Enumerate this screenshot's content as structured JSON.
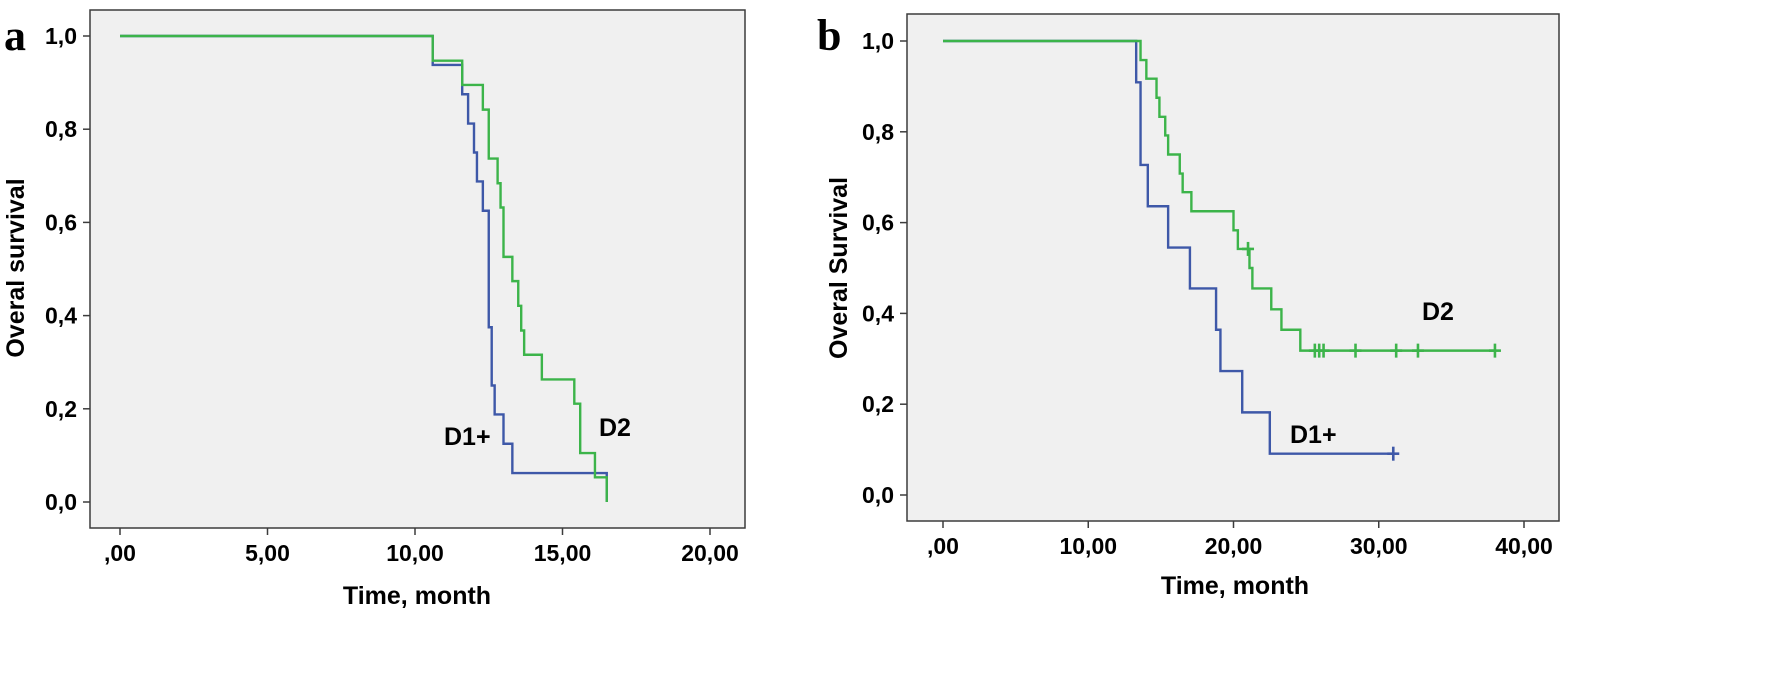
{
  "chart_data": [
    {
      "type": "line",
      "panel": "a",
      "title": "",
      "xlabel": "Time, month",
      "ylabel": "Overal survival",
      "xlim": [
        0,
        20
      ],
      "ylim": [
        0,
        1
      ],
      "xticks": [
        0,
        5,
        10,
        15,
        20
      ],
      "xtick_labels": [
        ",00",
        "5,00",
        "10,00",
        "15,00",
        "20,00"
      ],
      "yticks": [
        0,
        0.2,
        0.4,
        0.6,
        0.8,
        1.0
      ],
      "ytick_labels": [
        "0,0",
        "0,2",
        "0,4",
        "0,6",
        "0,8",
        "1,0"
      ],
      "series": [
        {
          "name": "D1+",
          "color": "#3e58a8",
          "steps": [
            [
              0,
              1.0
            ],
            [
              10.6,
              0.938
            ],
            [
              11.6,
              0.875
            ],
            [
              11.8,
              0.812
            ],
            [
              12.0,
              0.75
            ],
            [
              12.1,
              0.688
            ],
            [
              12.3,
              0.625
            ],
            [
              12.5,
              0.375
            ],
            [
              12.6,
              0.25
            ],
            [
              12.7,
              0.188
            ],
            [
              13.0,
              0.125
            ],
            [
              13.3,
              0.062
            ],
            [
              16.5,
              0.0
            ]
          ],
          "end": 16.5,
          "censored": []
        },
        {
          "name": "D2",
          "color": "#3cb44a",
          "steps": [
            [
              0,
              1.0
            ],
            [
              10.6,
              0.947
            ],
            [
              11.6,
              0.895
            ],
            [
              12.3,
              0.842
            ],
            [
              12.5,
              0.737
            ],
            [
              12.8,
              0.684
            ],
            [
              12.9,
              0.632
            ],
            [
              13.0,
              0.526
            ],
            [
              13.3,
              0.474
            ],
            [
              13.5,
              0.421
            ],
            [
              13.6,
              0.368
            ],
            [
              13.7,
              0.316
            ],
            [
              14.3,
              0.263
            ],
            [
              15.4,
              0.211
            ],
            [
              15.6,
              0.105
            ],
            [
              16.1,
              0.053
            ],
            [
              16.5,
              0.0
            ]
          ],
          "end": 16.5,
          "censored": []
        }
      ]
    },
    {
      "type": "line",
      "panel": "b",
      "title": "",
      "xlabel": "Time, month",
      "ylabel": "Overal Survival",
      "xlim": [
        0,
        40
      ],
      "ylim": [
        0,
        1
      ],
      "xticks": [
        0,
        10,
        20,
        30,
        40
      ],
      "xtick_labels": [
        ",00",
        "10,00",
        "20,00",
        "30,00",
        "40,00"
      ],
      "yticks": [
        0,
        0.2,
        0.4,
        0.6,
        0.8,
        1.0
      ],
      "ytick_labels": [
        "0,0",
        "0,2",
        "0,4",
        "0,6",
        "0,8",
        "1,0"
      ],
      "series": [
        {
          "name": "D1+",
          "color": "#3e58a8",
          "steps": [
            [
              0,
              1.0
            ],
            [
              13.3,
              0.909
            ],
            [
              13.6,
              0.727
            ],
            [
              14.1,
              0.636
            ],
            [
              15.5,
              0.545
            ],
            [
              17.0,
              0.455
            ],
            [
              18.8,
              0.364
            ],
            [
              19.1,
              0.273
            ],
            [
              20.6,
              0.182
            ],
            [
              22.5,
              0.091
            ]
          ],
          "end": 31.0,
          "censored": [
            31.0
          ]
        },
        {
          "name": "D2",
          "color": "#3cb44a",
          "steps": [
            [
              0,
              1.0
            ],
            [
              13.6,
              0.958
            ],
            [
              14.0,
              0.917
            ],
            [
              14.7,
              0.875
            ],
            [
              14.9,
              0.833
            ],
            [
              15.3,
              0.792
            ],
            [
              15.5,
              0.75
            ],
            [
              16.3,
              0.708
            ],
            [
              16.5,
              0.667
            ],
            [
              17.1,
              0.625
            ],
            [
              20.0,
              0.583
            ],
            [
              20.3,
              0.542
            ],
            [
              21.1,
              0.5
            ],
            [
              21.3,
              0.455
            ],
            [
              22.6,
              0.409
            ],
            [
              23.3,
              0.364
            ],
            [
              24.6,
              0.318
            ]
          ],
          "end": 38.0,
          "censored": [
            21.0,
            25.6,
            25.9,
            26.2,
            28.4,
            31.2,
            32.7,
            38.0
          ]
        }
      ]
    }
  ]
}
